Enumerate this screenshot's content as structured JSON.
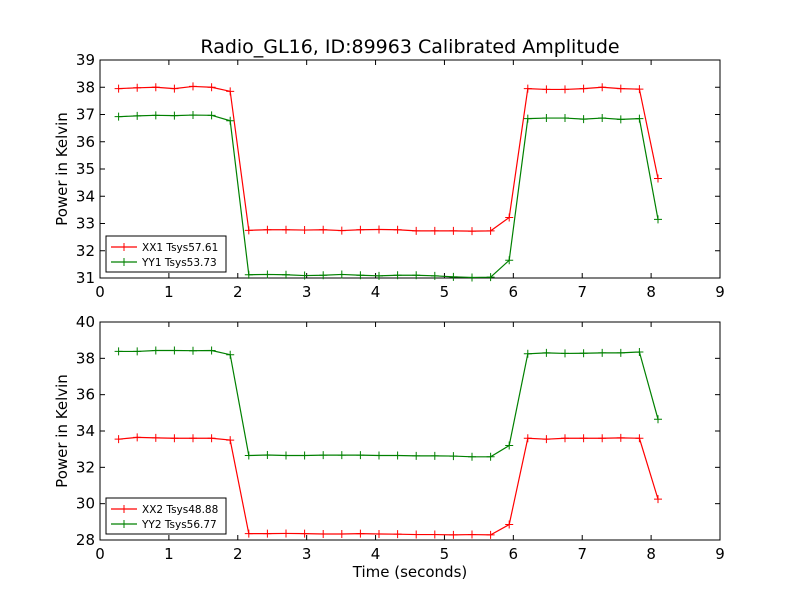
{
  "figure": {
    "title": "Radio_GL16, ID:89963 Calibrated Amplitude"
  },
  "chart_data": [
    {
      "type": "line",
      "title": "Radio_GL16, ID:89963 Calibrated Amplitude",
      "xlabel": "",
      "ylabel": "Power in Kelvin",
      "xlim": [
        0,
        9
      ],
      "ylim": [
        31,
        39
      ],
      "xticks": [
        0,
        1,
        2,
        3,
        4,
        5,
        6,
        7,
        8,
        9
      ],
      "yticks": [
        31,
        32,
        33,
        34,
        35,
        36,
        37,
        38,
        39
      ],
      "grid": false,
      "legend_position": "lower-left",
      "x": [
        0.27,
        0.54,
        0.81,
        1.08,
        1.35,
        1.62,
        1.89,
        2.16,
        2.43,
        2.7,
        2.97,
        3.24,
        3.51,
        3.78,
        4.05,
        4.32,
        4.59,
        4.86,
        5.13,
        5.4,
        5.67,
        5.94,
        6.21,
        6.48,
        6.75,
        7.02,
        7.29,
        7.56,
        7.83,
        8.1
      ],
      "series": [
        {
          "name": "XX1 Tsys57.61",
          "color": "#ff0000",
          "values": [
            37.95,
            37.98,
            38.0,
            37.95,
            38.03,
            38.0,
            37.85,
            32.75,
            32.77,
            32.77,
            32.76,
            32.77,
            32.74,
            32.77,
            32.78,
            32.77,
            32.73,
            32.73,
            32.73,
            32.72,
            32.73,
            33.22,
            37.95,
            37.92,
            37.92,
            37.95,
            38.0,
            37.95,
            37.93,
            34.65
          ]
        },
        {
          "name": "YY1 Tsys53.73",
          "color": "#008000",
          "values": [
            36.92,
            36.95,
            36.97,
            36.96,
            36.98,
            36.97,
            36.77,
            31.12,
            31.13,
            31.12,
            31.09,
            31.1,
            31.13,
            31.1,
            31.08,
            31.1,
            31.1,
            31.08,
            31.04,
            31.02,
            31.03,
            31.65,
            36.85,
            36.87,
            36.87,
            36.83,
            36.87,
            36.82,
            36.85,
            33.15
          ]
        }
      ]
    },
    {
      "type": "line",
      "title": "",
      "xlabel": "Time (seconds)",
      "ylabel": "Power in Kelvin",
      "xlim": [
        0,
        9
      ],
      "ylim": [
        28,
        40
      ],
      "xticks": [
        0,
        1,
        2,
        3,
        4,
        5,
        6,
        7,
        8,
        9
      ],
      "yticks": [
        28,
        30,
        32,
        34,
        36,
        38,
        40
      ],
      "grid": false,
      "legend_position": "lower-left",
      "x": [
        0.27,
        0.54,
        0.81,
        1.08,
        1.35,
        1.62,
        1.89,
        2.16,
        2.43,
        2.7,
        2.97,
        3.24,
        3.51,
        3.78,
        4.05,
        4.32,
        4.59,
        4.86,
        5.13,
        5.4,
        5.67,
        5.94,
        6.21,
        6.48,
        6.75,
        7.02,
        7.29,
        7.56,
        7.83,
        8.1
      ],
      "series": [
        {
          "name": "XX2 Tsys48.88",
          "color": "#ff0000",
          "values": [
            33.55,
            33.65,
            33.62,
            33.6,
            33.6,
            33.6,
            33.5,
            28.35,
            28.35,
            28.36,
            28.35,
            28.33,
            28.33,
            28.35,
            28.33,
            28.32,
            28.3,
            28.3,
            28.28,
            28.3,
            28.28,
            28.85,
            33.6,
            33.55,
            33.6,
            33.6,
            33.6,
            33.62,
            33.6,
            30.25
          ]
        },
        {
          "name": "YY2 Tsys56.77",
          "color": "#008000",
          "values": [
            38.38,
            38.38,
            38.43,
            38.43,
            38.42,
            38.43,
            38.2,
            32.65,
            32.68,
            32.65,
            32.65,
            32.67,
            32.67,
            32.67,
            32.65,
            32.65,
            32.63,
            32.63,
            32.62,
            32.58,
            32.58,
            33.2,
            38.25,
            38.3,
            38.27,
            38.28,
            38.3,
            38.3,
            38.35,
            34.65
          ]
        }
      ]
    }
  ]
}
